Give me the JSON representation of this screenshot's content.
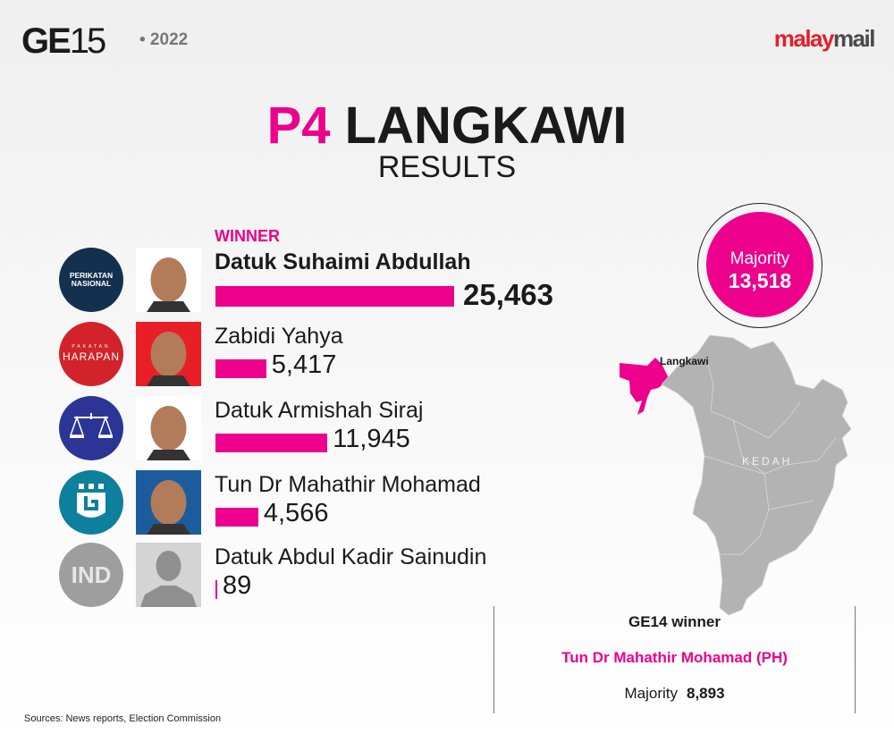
{
  "header": {
    "event_prefix": "GE",
    "event_number": "15",
    "year": "• 2022",
    "brand_part1": "malay",
    "brand_part2": "mail"
  },
  "title": {
    "code": "P4",
    "seat": "LANGKAWI",
    "subtitle": "RESULTS"
  },
  "winner_label": "WINNER",
  "candidates": [
    {
      "name": "Datuk Suhaimi Abdullah",
      "votes_label": "25,463",
      "party_logo": "PERIKATAN NASIONAL",
      "party_color": "#13304f",
      "photo_bg": "#ffffff",
      "winner": true
    },
    {
      "name": "Zabidi Yahya",
      "votes_label": "5,417",
      "party_logo": "HARAPAN",
      "party_logo_top": "PAKATAN",
      "party_color": "#d2232a",
      "photo_bg": "#e81f26"
    },
    {
      "name": "Datuk Armishah Siraj",
      "votes_label": "11,945",
      "party_logo": "scales-icon",
      "party_color": "#2b3595",
      "photo_bg": "#ffffff"
    },
    {
      "name": "Tun Dr Mahathir Mohamad",
      "votes_label": "4,566",
      "party_logo": "pejuang-icon",
      "party_color": "#0e7f9c",
      "photo_bg": "#1d5c9c"
    },
    {
      "name": "Datuk Abdul Kadir Sainudin",
      "votes_label": "89",
      "party_logo": "IND",
      "party_color": "#9e9e9e",
      "photo_bg": "#d4d4d4"
    }
  ],
  "chart_data": {
    "type": "bar",
    "orientation": "horizontal",
    "categories": [
      "Datuk Suhaimi Abdullah",
      "Zabidi Yahya",
      "Datuk Armishah Siraj",
      "Tun Dr Mahathir Mohamad",
      "Datuk Abdul Kadir Sainudin"
    ],
    "values": [
      25463,
      5417,
      11945,
      4566,
      89
    ],
    "bar_color": "#ec008c"
  },
  "majority": {
    "label": "Majority",
    "value": "13,518"
  },
  "map": {
    "highlight_label": "Langkawi",
    "state_label": "KEDAH",
    "highlight_color": "#ec008c",
    "state_color": "#b3b3b3"
  },
  "ge14": {
    "title": "GE14 winner",
    "winner": "Tun Dr Mahathir Mohamad (PH)",
    "majority_label": "Majority",
    "majority_value": "8,893"
  },
  "sources": "Sources: News reports, Election Commission",
  "colors": {
    "accent": "#ec008c"
  }
}
